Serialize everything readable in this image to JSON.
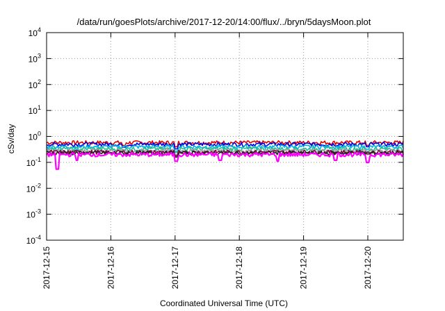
{
  "chart_data": {
    "type": "line",
    "title": "/data/run/goesPlots/archive/2017-12-20/14:00/flux/../bryn/5daysMoon.plot",
    "xlabel": "Coordinated Universal Time (UTC)",
    "ylabel": "cSv/day",
    "y_scale": "log",
    "ylim": [
      0.0001,
      10000
    ],
    "y_ticks": [
      {
        "exp": "-4",
        "value": 0.0001
      },
      {
        "exp": "-3",
        "value": 0.001
      },
      {
        "exp": "-2",
        "value": 0.01
      },
      {
        "exp": "-1",
        "value": 0.1
      },
      {
        "exp": "0",
        "value": 1
      },
      {
        "exp": "1",
        "value": 10
      },
      {
        "exp": "2",
        "value": 100
      },
      {
        "exp": "3",
        "value": 1000
      },
      {
        "exp": "4",
        "value": 10000
      }
    ],
    "xlim": [
      "2017-12-15",
      "2017-12-20T14:00"
    ],
    "x_ticks": [
      "2017-12-15",
      "2017-12-16",
      "2017-12-17",
      "2017-12-18",
      "2017-12-19",
      "2017-12-20"
    ],
    "grid": true,
    "series": [
      {
        "color": "#e00000",
        "level": 0.58,
        "dips": [
          {
            "x": 1.2,
            "v": 0.45
          },
          {
            "x": 2.02,
            "v": 0.4
          },
          {
            "x": 5.0,
            "v": 0.45
          }
        ]
      },
      {
        "color": "#0000e0",
        "level": 0.5,
        "dips": [
          {
            "x": 1.2,
            "v": 0.38
          },
          {
            "x": 2.02,
            "v": 0.33
          },
          {
            "x": 5.0,
            "v": 0.4
          }
        ]
      },
      {
        "color": "#00b0e0",
        "level": 0.4,
        "dips": [
          {
            "x": 0.47,
            "v": 0.3
          },
          {
            "x": 2.02,
            "v": 0.27
          },
          {
            "x": 5.0,
            "v": 0.32
          }
        ]
      },
      {
        "color": "#20c090",
        "level": 0.33,
        "dips": [
          {
            "x": 2.02,
            "v": 0.24
          },
          {
            "x": 5.0,
            "v": 0.27
          }
        ]
      },
      {
        "color": "#a0a0a0",
        "level": 0.28,
        "dips": [
          {
            "x": 2.02,
            "v": 0.2
          }
        ]
      },
      {
        "color": "#800040",
        "level": 0.25,
        "dips": [
          {
            "x": 2.02,
            "v": 0.18
          },
          {
            "x": 5.0,
            "v": 0.21
          }
        ]
      },
      {
        "color": "#202020",
        "level": 0.23,
        "dips": [
          {
            "x": 2.02,
            "v": 0.16
          }
        ]
      },
      {
        "color": "#ff00ff",
        "level": 0.2,
        "dips": [
          {
            "x": 0.17,
            "v": 0.055
          },
          {
            "x": 0.47,
            "v": 0.12
          },
          {
            "x": 2.02,
            "v": 0.11
          },
          {
            "x": 2.7,
            "v": 0.12
          },
          {
            "x": 3.6,
            "v": 0.11
          },
          {
            "x": 4.5,
            "v": 0.12
          },
          {
            "x": 5.0,
            "v": 0.1
          }
        ]
      }
    ]
  }
}
